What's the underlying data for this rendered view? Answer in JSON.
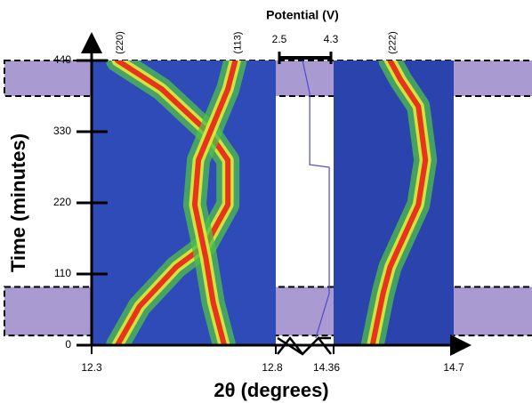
{
  "chart_data": {
    "type": "line",
    "ylabel": "Time (minutes)",
    "xlabel": "2θ (degrees)",
    "ylim": [
      0,
      440
    ],
    "yticks": [
      0,
      110,
      220,
      330,
      440
    ],
    "panels": [
      {
        "xlim": [
          12.3,
          12.8
        ],
        "xticks": [
          12.3,
          12.8
        ]
      },
      {
        "xlim": [
          14.36,
          14.7
        ],
        "xticks": [
          14.36,
          14.7
        ]
      }
    ],
    "series": [
      {
        "name": "(220)",
        "panel": 0,
        "x": [
          12.37,
          12.43,
          12.53,
          12.61,
          12.67,
          12.67,
          12.62,
          12.49,
          12.37
        ],
        "values": [
          0,
          60,
          121,
          155,
          217,
          286,
          327,
          396,
          440
        ]
      },
      {
        "name": "(113)",
        "panel": 0,
        "x": [
          12.66,
          12.63,
          12.61,
          12.58,
          12.59,
          12.62,
          12.67,
          12.69
        ],
        "values": [
          0,
          66,
          135,
          217,
          286,
          327,
          396,
          440
        ]
      },
      {
        "name": "(222)",
        "panel": 1,
        "x": [
          14.47,
          14.5,
          14.52,
          14.6,
          14.62,
          14.6,
          14.55,
          14.52
        ],
        "values": [
          0,
          80,
          121,
          217,
          286,
          369,
          410,
          440
        ]
      }
    ],
    "potential": {
      "label": "Potential (V)",
      "xlim": [
        2.5,
        4.3
      ],
      "xticks": [
        2.5,
        4.3
      ],
      "color": "#4b4bc8",
      "x": [
        3.77,
        4.24,
        4.24,
        3.56,
        3.56,
        3.31
      ],
      "values": [
        11,
        80,
        275,
        279,
        389,
        440
      ]
    },
    "shaded_ranges": [
      [
        385,
        440
      ],
      [
        15,
        90
      ]
    ]
  }
}
